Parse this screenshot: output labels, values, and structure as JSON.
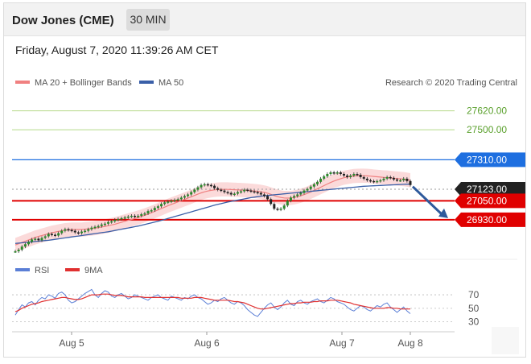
{
  "header": {
    "title": "Dow Jones (CME)",
    "interval": "30 MIN",
    "datetime": "Friday, August 7, 2020 11:39:26 AM CET"
  },
  "legend": {
    "ma20": "MA 20 + Bollinger Bands",
    "ma50": "MA 50",
    "credit": "Research © 2020 Trading Central",
    "rsi": "RSI",
    "rsi_ma": "9MA"
  },
  "colors": {
    "ma20": "#f08080",
    "ma50": "#3a5fa8",
    "bollinger_fill": "#fbdada",
    "support": "#e00000",
    "resistance": "#1e6fe0",
    "target": "#b5d98a",
    "current": "#222222",
    "rsi": "#5b7fd6",
    "rsi_ma": "#e03030",
    "arrow": "#2e5a9c"
  },
  "chart_data": [
    {
      "type": "line",
      "ylim": [
        26710,
        27730
      ],
      "x_ticks": [
        "Aug 5",
        "Aug 6",
        "Aug 7",
        "Aug 8"
      ],
      "levels": [
        {
          "name": "target",
          "value": 27620,
          "label": "27620.00"
        },
        {
          "name": "target",
          "value": 27500,
          "label": "27500.00"
        },
        {
          "name": "resistance",
          "value": 27310,
          "label": "27310.00"
        },
        {
          "name": "current",
          "value": 27123,
          "label": "27123.00"
        },
        {
          "name": "support",
          "value": 27050,
          "label": "27050.00"
        },
        {
          "name": "support",
          "value": 26930,
          "label": "26930.00"
        }
      ],
      "x": [
        0,
        1,
        2,
        3,
        4,
        5,
        6,
        7,
        8,
        9,
        10,
        11,
        12,
        13,
        14,
        15,
        16,
        17,
        18,
        19,
        20,
        21,
        22,
        23,
        24,
        25,
        26,
        27,
        28,
        29,
        30,
        31,
        32,
        33,
        34,
        35,
        36,
        37,
        38,
        39,
        40,
        41,
        42,
        43,
        44,
        45,
        46,
        47,
        48,
        49,
        50,
        51,
        52,
        53,
        54,
        55,
        56,
        57,
        58,
        59,
        60,
        61,
        62,
        63,
        64,
        65,
        66,
        67,
        68,
        69,
        70,
        71,
        72,
        73,
        74,
        75,
        76,
        77,
        78,
        79,
        80,
        81,
        82,
        83,
        84,
        85,
        86,
        87,
        88,
        89,
        90,
        91,
        92,
        93,
        94,
        95,
        96,
        97,
        98,
        99,
        100,
        101,
        102,
        103,
        104,
        105,
        106,
        107,
        108,
        109,
        110,
        111,
        112,
        113,
        114,
        115,
        116,
        117,
        118,
        119
      ],
      "series": [
        {
          "name": "price",
          "values": [
            26730,
            26740,
            26760,
            26775,
            26790,
            26805,
            26810,
            26800,
            26815,
            26825,
            26840,
            26835,
            26830,
            26845,
            26860,
            26870,
            26865,
            26860,
            26850,
            26845,
            26855,
            26860,
            26870,
            26880,
            26885,
            26890,
            26900,
            26905,
            26915,
            26920,
            26930,
            26935,
            26940,
            26945,
            26950,
            26955,
            26950,
            26955,
            26965,
            26970,
            26985,
            26990,
            27005,
            27015,
            27030,
            27040,
            27045,
            27050,
            27055,
            27060,
            27070,
            27080,
            27090,
            27105,
            27120,
            27135,
            27150,
            27155,
            27150,
            27145,
            27130,
            27120,
            27115,
            27105,
            27100,
            27090,
            27095,
            27105,
            27110,
            27120,
            27115,
            27110,
            27105,
            27100,
            27090,
            27080,
            27060,
            27030,
            27000,
            26995,
            27000,
            27020,
            27050,
            27070,
            27080,
            27090,
            27100,
            27115,
            27125,
            27140,
            27155,
            27170,
            27190,
            27205,
            27220,
            27230,
            27225,
            27230,
            27220,
            27210,
            27200,
            27210,
            27220,
            27215,
            27200,
            27190,
            27180,
            27175,
            27170,
            27175,
            27180,
            27190,
            27200,
            27195,
            27185,
            27180,
            27180,
            27190,
            27175,
            27150
          ]
        },
        {
          "name": "MA 20",
          "values": [
            26770,
            26778,
            26786,
            26794,
            26802,
            26810,
            26818,
            26824,
            26830,
            26836,
            26842,
            26848,
            26852,
            26856,
            26860,
            26864,
            26866,
            26868,
            26868,
            26868,
            26868,
            26870,
            26872,
            26874,
            26877,
            26880,
            26884,
            26888,
            26892,
            26897,
            26902,
            26908,
            26914,
            26920,
            26926,
            26932,
            26938,
            26944,
            26951,
            26958,
            26966,
            26974,
            26983,
            26992,
            27001,
            27010,
            27019,
            27027,
            27035,
            27043,
            27051,
            27059,
            27067,
            27075,
            27084,
            27092,
            27100,
            27107,
            27112,
            27116,
            27119,
            27121,
            27122,
            27122,
            27122,
            27121,
            27120,
            27119,
            27118,
            27117,
            27116,
            27114,
            27112,
            27110,
            27107,
            27103,
            27098,
            27091,
            27083,
            27076,
            27071,
            27068,
            27067,
            27068,
            27071,
            27076,
            27082,
            27089,
            27097,
            27106,
            27116,
            27126,
            27136,
            27146,
            27156,
            27166,
            27175,
            27183,
            27190,
            27196,
            27200,
            27204,
            27207,
            27208,
            27209,
            27209,
            27208,
            27206,
            27204,
            27202,
            27200,
            27198,
            27197,
            27195,
            27193,
            27191,
            27189,
            27187,
            27184,
            27180
          ]
        },
        {
          "name": "MA 50",
          "values": [
            26780,
            26782,
            26784,
            26786,
            26788,
            26790,
            26792,
            26794,
            26796,
            26798,
            26800,
            26803,
            26806,
            26809,
            26812,
            26815,
            26818,
            26821,
            26824,
            26827,
            26830,
            26833,
            26836,
            26839,
            26842,
            26845,
            26848,
            26851,
            26854,
            26858,
            26862,
            26866,
            26870,
            26874,
            26878,
            26882,
            26886,
            26890,
            26895,
            26900,
            26905,
            26910,
            26915,
            26920,
            26926,
            26932,
            26938,
            26944,
            26950,
            26956,
            26962,
            26968,
            26974,
            26980,
            26986,
            26992,
            26998,
            27004,
            27010,
            27016,
            27022,
            27027,
            27032,
            27037,
            27042,
            27046,
            27050,
            27054,
            27058,
            27062,
            27066,
            27070,
            27073,
            27076,
            27079,
            27082,
            27084,
            27086,
            27088,
            27090,
            27092,
            27094,
            27096,
            27098,
            27100,
            27102,
            27104,
            27106,
            27108,
            27110,
            27112,
            27114,
            27116,
            27118,
            27120,
            27122,
            27124,
            27126,
            27128,
            27130,
            27132,
            27134,
            27136,
            27138,
            27140,
            27142,
            27143,
            27144,
            27145,
            27146,
            27147,
            27148,
            27149,
            27150,
            27151,
            27152,
            27153,
            27154,
            27155,
            27155
          ]
        }
      ],
      "bollinger_width": 45
    },
    {
      "type": "line",
      "ylim": [
        20,
        82
      ],
      "y_ticks": [
        30,
        50,
        70
      ],
      "series": [
        {
          "name": "RSI",
          "values": [
            40,
            48,
            55,
            52,
            58,
            60,
            55,
            62,
            66,
            64,
            70,
            68,
            65,
            72,
            74,
            70,
            62,
            58,
            60,
            64,
            68,
            72,
            75,
            78,
            70,
            66,
            72,
            76,
            74,
            68,
            66,
            70,
            72,
            68,
            64,
            66,
            70,
            68,
            66,
            64,
            62,
            66,
            68,
            70,
            66,
            64,
            62,
            68,
            66,
            64,
            62,
            66,
            64,
            68,
            70,
            66,
            64,
            60,
            56,
            58,
            62,
            60,
            64,
            66,
            62,
            58,
            56,
            60,
            58,
            54,
            48,
            44,
            40,
            38,
            44,
            50,
            55,
            58,
            52,
            48,
            52,
            58,
            62,
            56,
            54,
            60,
            62,
            58,
            56,
            60,
            62,
            64,
            60,
            58,
            62,
            66,
            64,
            60,
            58,
            56,
            52,
            48,
            46,
            50,
            54,
            52,
            48,
            46,
            50,
            54,
            52,
            56,
            58,
            52,
            48,
            44,
            48,
            52,
            46,
            42
          ]
        },
        {
          "name": "9MA",
          "values": [
            45,
            47,
            50,
            52,
            54,
            56,
            57,
            58,
            60,
            61,
            62,
            63,
            64,
            65,
            66,
            66,
            65,
            64,
            63,
            63,
            64,
            66,
            68,
            70,
            70,
            70,
            71,
            71,
            71,
            70,
            69,
            69,
            69,
            68,
            67,
            67,
            67,
            67,
            67,
            66,
            66,
            66,
            66,
            66,
            66,
            66,
            66,
            66,
            66,
            66,
            65,
            65,
            65,
            65,
            66,
            66,
            66,
            65,
            64,
            63,
            62,
            62,
            62,
            62,
            62,
            61,
            60,
            60,
            59,
            58,
            56,
            54,
            52,
            50,
            49,
            49,
            50,
            51,
            52,
            53,
            54,
            55,
            56,
            57,
            57,
            58,
            58,
            59,
            59,
            59,
            60,
            60,
            61,
            61,
            61,
            62,
            62,
            62,
            61,
            60,
            59,
            58,
            56,
            55,
            54,
            53,
            52,
            51,
            50,
            50,
            50,
            50,
            51,
            51,
            50,
            50,
            49,
            49,
            49,
            49
          ]
        }
      ]
    }
  ]
}
